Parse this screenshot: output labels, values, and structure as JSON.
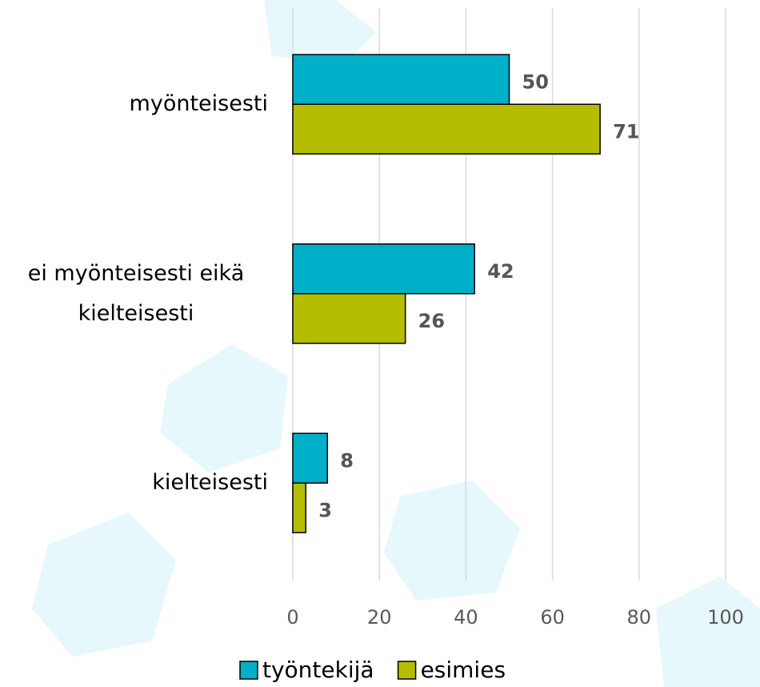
{
  "chart_data": {
    "type": "hbar",
    "categories": [
      "myönteisesti",
      "ei myönteisesti eikä kielteisesti",
      "kielteisesti"
    ],
    "series": [
      {
        "name": "työntekijä",
        "color": "#00afc8",
        "values": [
          50,
          42,
          8
        ]
      },
      {
        "name": "esimies",
        "color": "#b5bd00",
        "values": [
          71,
          26,
          3
        ]
      }
    ],
    "xlim": [
      0,
      100
    ],
    "xticks": [
      0,
      20,
      40,
      60,
      80,
      100
    ],
    "grid": true
  }
}
